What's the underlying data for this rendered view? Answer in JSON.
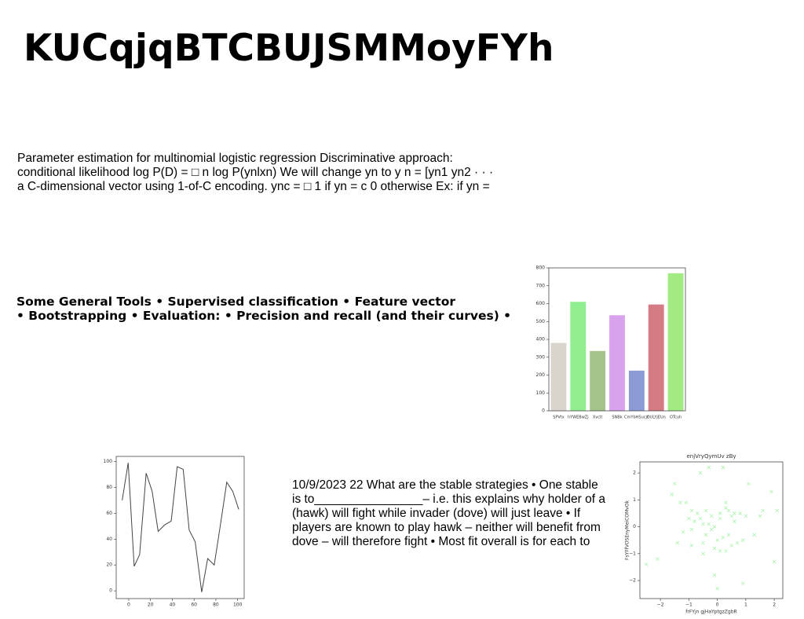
{
  "title": "KUCqjqBTCBUJSMMoyFYh",
  "paragraphs": [
    [
      "Parameter estimation for multinomial logistic regression Discriminative approach:",
      "conditional likelihood log P(D) = □ n log P(ynlxn) We will change yn to y n = [yn1 yn2 · · ·",
      "a C-dimensional vector using 1-of-C encoding. ync = □ 1 if yn = c 0 otherwise Ex: if yn ="
    ],
    [
      "Some General Tools • Supervised classification • Feature vector",
      "• Bootstrapping • Evaluation: • Precision and recall (and their curves) •"
    ],
    [
      "10/9/2023 22 What are the stable strategies • One stable",
      "is to________________– i.e. this explains why holder of a",
      "(hawk) will fight while invader (dove) will just leave • If",
      "players are known to play hawk – neither will benefit from",
      "dove – will therefore fight • Most fit overall is for each to"
    ]
  ],
  "chart_data": [
    {
      "type": "bar",
      "categories": [
        "SPVtx",
        "hYWEBwZj",
        "Xvclt",
        "SNBk",
        "CmYbHSucjc",
        "OULYjEUn",
        "OTcuh"
      ],
      "values": [
        380,
        610,
        335,
        535,
        225,
        595,
        770
      ],
      "colors": [
        "#d9d5cd",
        "#90ee90",
        "#a4c48c",
        "#d9a2ec",
        "#8b9cd5",
        "#d57b83",
        "#a2ea82"
      ],
      "ylim": [
        0,
        800
      ],
      "yticks": [
        0,
        100,
        200,
        300,
        400,
        500,
        600,
        700,
        800
      ]
    },
    {
      "type": "line",
      "x": [
        -6,
        -0.5,
        5,
        10,
        16,
        21.5,
        27,
        33,
        39,
        44.5,
        50,
        55.5,
        61,
        67,
        72.5,
        78.5,
        84,
        90,
        95.5,
        101
      ],
      "values": [
        70,
        99,
        19,
        28,
        91,
        77,
        46,
        51,
        54,
        96,
        94,
        47,
        38,
        -1,
        25,
        20,
        50,
        84,
        77,
        63
      ],
      "color": "#444444",
      "xlim": [
        -11.5,
        106
      ],
      "xticks": [
        0,
        20,
        40,
        60,
        80,
        100
      ],
      "ylim": [
        -6,
        104
      ],
      "yticks": [
        0,
        20,
        40,
        60,
        80,
        100
      ]
    },
    {
      "type": "scatter",
      "title": "enjVryQymUv zBy",
      "xlabel": "frFYjn gjHaYptgzZgbR",
      "ylabel": "FsYFfVOSEnyMeiCOMvOk",
      "x": [
        -2.5,
        -2.1,
        -1.6,
        -1.5,
        -1.3,
        -1.2,
        -1.1,
        -1.0,
        -0.9,
        -0.9,
        -0.8,
        -0.7,
        -0.6,
        -0.6,
        -0.5,
        -0.5,
        -0.4,
        -0.4,
        -0.3,
        -0.3,
        -0.2,
        -0.2,
        -0.1,
        -0.1,
        0.0,
        0.0,
        0.1,
        0.1,
        0.2,
        0.2,
        0.3,
        0.3,
        0.4,
        0.4,
        0.5,
        0.5,
        0.6,
        0.7,
        0.8,
        0.9,
        1.0,
        1.1,
        1.3,
        1.5,
        1.6,
        1.9,
        2.0,
        2.1,
        -0.5,
        0.1,
        -1.4,
        0.6,
        -0.9,
        0.9,
        -0.1,
        0.3
      ],
      "values": [
        -1.4,
        -1.2,
        1.2,
        1.6,
        0.9,
        -0.2,
        0.9,
        0.3,
        -0.7,
        0.6,
        0.2,
        0.5,
        2.0,
        0.3,
        -1.0,
        0.1,
        0.6,
        -0.3,
        2.2,
        0.1,
        -0.1,
        0.4,
        0.0,
        -0.8,
        -0.5,
        -2.3,
        0.5,
        0.3,
        2.2,
        -0.4,
        0.7,
        -0.9,
        -0.3,
        0.6,
        -0.7,
        0.4,
        0.5,
        -0.6,
        0.5,
        -2.1,
        0.4,
        1.6,
        -0.3,
        0.4,
        0.6,
        1.3,
        -1.3,
        0.6,
        -0.6,
        -0.9,
        -0.6,
        0.2,
        -0.1,
        -0.5,
        -1.8,
        0.9
      ],
      "color": "#90ee90",
      "xlim": [
        -2.72,
        2.3
      ],
      "xticks": [
        {
          "value": -2,
          "label": "−2"
        },
        {
          "value": -1,
          "label": "−1"
        },
        0,
        1,
        2
      ],
      "ylim": [
        -2.67,
        2.41
      ],
      "yticks": [
        {
          "value": -2,
          "label": "−2"
        },
        {
          "value": -1,
          "label": "−1"
        },
        0,
        1,
        2
      ]
    }
  ]
}
